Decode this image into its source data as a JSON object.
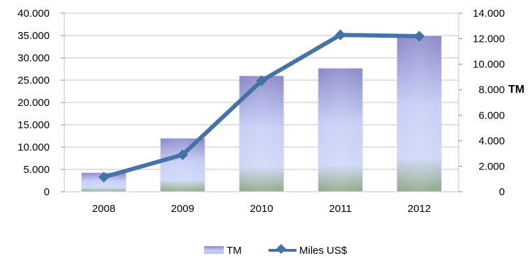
{
  "chart_data": {
    "type": "bar",
    "categories": [
      "2008",
      "2009",
      "2010",
      "2011",
      "2012"
    ],
    "series": [
      {
        "name": "TM",
        "type": "bar",
        "axis": "left",
        "values": [
          4300,
          12000,
          26000,
          27700,
          35000
        ]
      },
      {
        "name": "Miles US$",
        "type": "line",
        "axis": "right",
        "values": [
          1150,
          2900,
          8700,
          12300,
          12200
        ]
      }
    ],
    "y_left": {
      "ylim": [
        0,
        40000
      ],
      "ticks": [
        "0",
        "5.000",
        "10.000",
        "15.000",
        "20.000",
        "25.000",
        "30.000",
        "35.000",
        "40.000"
      ]
    },
    "y_right": {
      "ylim": [
        0,
        14000
      ],
      "ticks": [
        "0",
        "2.000",
        "4.000",
        "6.000",
        "8.000",
        "10.000",
        "12.000",
        "14.000"
      ],
      "label": "TM"
    },
    "grid": true,
    "legend_position": "bottom",
    "colors": {
      "bar_top": "#8c88c9",
      "bar_mid": "#c9d2f7",
      "bar_bottom": "#8fa884",
      "line": "#4572a7",
      "grid": "#c0c0c0"
    }
  }
}
